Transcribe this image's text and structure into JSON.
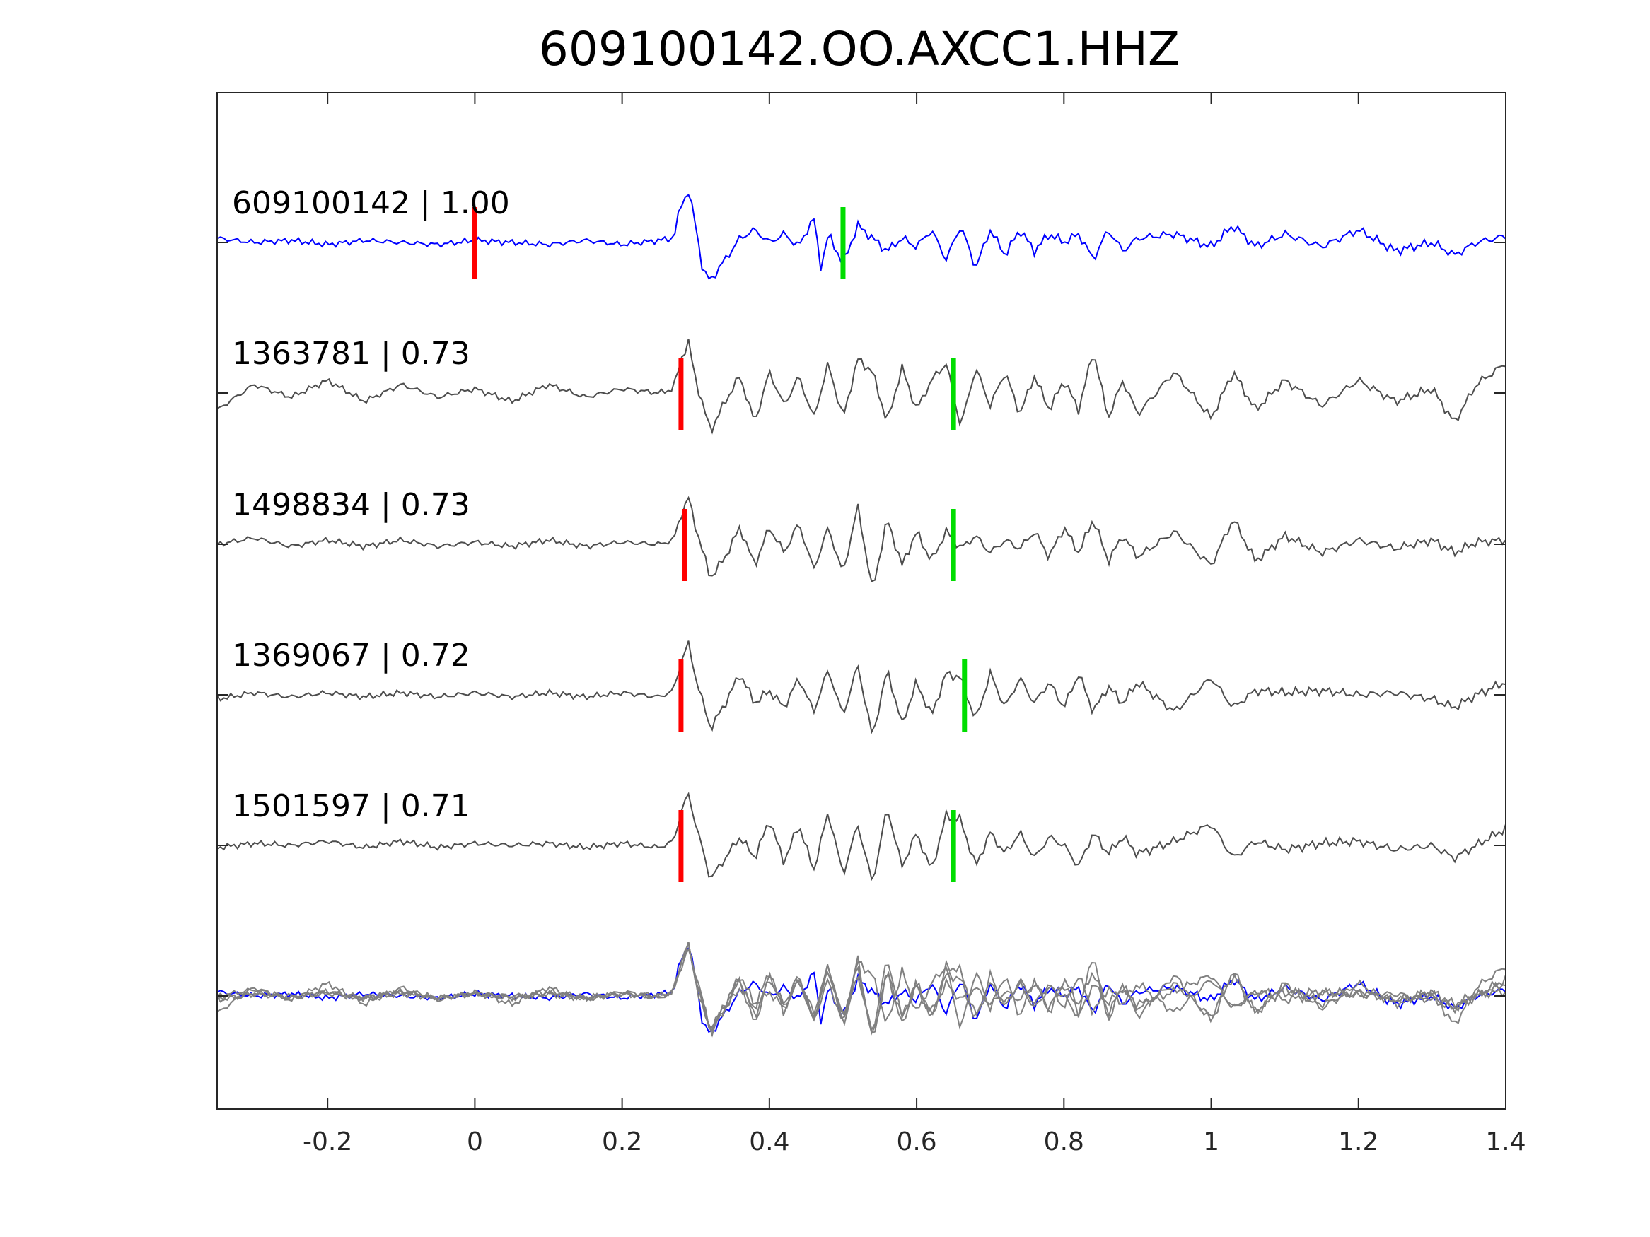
{
  "chart_data": {
    "type": "line",
    "title": "609100142.OO.AXCC1.HHZ",
    "xlabel": "",
    "ylabel": "",
    "xlim": [
      -0.35,
      1.4
    ],
    "xticks": [
      -0.2,
      0,
      0.2,
      0.4,
      0.6,
      0.8,
      1,
      1.2,
      1.4
    ],
    "xtick_labels": [
      "-0.2",
      "0",
      "0.2",
      "0.4",
      "0.6",
      "0.8",
      "1",
      "1.2",
      "1.4"
    ],
    "grid": false,
    "colors": {
      "reference": "#0000ff",
      "match": "#4d4d4d",
      "overlay": "#808080",
      "p_pick": "#ff0000",
      "s_pick": "#00dd00",
      "axes": "#262626"
    },
    "series": [
      {
        "name": "609100142",
        "label": "609100142 | 1.00",
        "cc": 1.0,
        "reference": true,
        "p_pick": 0.0,
        "s_pick": 0.5,
        "x": [
          -0.35,
          -0.3,
          -0.25,
          -0.2,
          -0.15,
          -0.1,
          -0.05,
          0.0,
          0.05,
          0.1,
          0.15,
          0.2,
          0.25,
          0.27,
          0.28,
          0.29,
          0.3,
          0.31,
          0.32,
          0.34,
          0.36,
          0.38,
          0.4,
          0.42,
          0.44,
          0.46,
          0.47,
          0.48,
          0.5,
          0.52,
          0.54,
          0.56,
          0.58,
          0.6,
          0.62,
          0.64,
          0.66,
          0.68,
          0.7,
          0.72,
          0.74,
          0.76,
          0.78,
          0.8,
          0.82,
          0.84,
          0.86,
          0.88,
          0.9,
          0.95,
          1.0,
          1.03,
          1.06,
          1.1,
          1.15,
          1.2,
          1.25,
          1.3,
          1.33,
          1.36,
          1.4
        ],
        "y": [
          0.1,
          0.0,
          0.05,
          -0.05,
          0.05,
          0.0,
          -0.05,
          0.05,
          0.0,
          -0.05,
          0.05,
          -0.05,
          0.05,
          0.1,
          0.9,
          1.2,
          0.4,
          -0.7,
          -0.9,
          -0.4,
          0.1,
          0.3,
          0.0,
          0.2,
          -0.1,
          0.6,
          -0.6,
          0.2,
          -0.5,
          0.4,
          0.1,
          -0.2,
          0.1,
          -0.1,
          0.3,
          -0.4,
          0.4,
          -0.6,
          0.3,
          -0.3,
          0.3,
          -0.2,
          0.2,
          0.0,
          0.2,
          -0.4,
          0.3,
          -0.2,
          0.1,
          0.2,
          -0.1,
          0.4,
          -0.1,
          0.2,
          -0.1,
          0.3,
          -0.2,
          0.0,
          -0.3,
          0.0,
          0.15
        ]
      },
      {
        "name": "1363781",
        "label": "1363781 | 0.73",
        "cc": 0.73,
        "p_pick": 0.28,
        "s_pick": 0.65,
        "x": [
          -0.35,
          -0.3,
          -0.25,
          -0.2,
          -0.15,
          -0.1,
          -0.05,
          0.0,
          0.05,
          0.1,
          0.15,
          0.2,
          0.25,
          0.27,
          0.28,
          0.29,
          0.3,
          0.32,
          0.34,
          0.36,
          0.38,
          0.4,
          0.42,
          0.44,
          0.46,
          0.48,
          0.5,
          0.52,
          0.54,
          0.56,
          0.58,
          0.6,
          0.62,
          0.64,
          0.66,
          0.68,
          0.7,
          0.72,
          0.74,
          0.76,
          0.78,
          0.8,
          0.82,
          0.84,
          0.86,
          0.88,
          0.9,
          0.95,
          1.0,
          1.03,
          1.06,
          1.1,
          1.15,
          1.2,
          1.25,
          1.3,
          1.33,
          1.36,
          1.4
        ],
        "y": [
          -0.4,
          0.2,
          -0.1,
          0.3,
          -0.2,
          0.2,
          -0.1,
          0.1,
          -0.2,
          0.2,
          -0.1,
          0.1,
          0.0,
          0.1,
          0.8,
          1.2,
          0.3,
          -0.9,
          -0.2,
          0.4,
          -0.7,
          0.5,
          -0.3,
          0.4,
          -0.6,
          0.7,
          -0.6,
          0.8,
          0.5,
          -0.7,
          0.6,
          -0.4,
          0.3,
          0.7,
          -0.8,
          0.6,
          -0.3,
          0.5,
          -0.5,
          0.4,
          -0.4,
          0.3,
          -0.4,
          1.0,
          -0.6,
          0.3,
          -0.5,
          0.5,
          -0.6,
          0.5,
          -0.4,
          0.3,
          -0.3,
          0.3,
          -0.2,
          0.1,
          -0.7,
          0.2,
          0.7
        ]
      },
      {
        "name": "1498834",
        "label": "1498834 | 0.73",
        "cc": 0.73,
        "p_pick": 0.285,
        "s_pick": 0.65,
        "x": [
          -0.35,
          -0.3,
          -0.25,
          -0.2,
          -0.15,
          -0.1,
          -0.05,
          0.0,
          0.05,
          0.1,
          0.15,
          0.2,
          0.25,
          0.27,
          0.28,
          0.29,
          0.3,
          0.32,
          0.34,
          0.36,
          0.38,
          0.4,
          0.42,
          0.44,
          0.46,
          0.48,
          0.5,
          0.52,
          0.54,
          0.56,
          0.58,
          0.6,
          0.62,
          0.64,
          0.66,
          0.68,
          0.7,
          0.72,
          0.74,
          0.76,
          0.78,
          0.8,
          0.82,
          0.84,
          0.86,
          0.88,
          0.9,
          0.95,
          1.0,
          1.03,
          1.06,
          1.1,
          1.15,
          1.2,
          1.25,
          1.3,
          1.33,
          1.36,
          1.4
        ],
        "y": [
          0.0,
          0.15,
          -0.05,
          0.1,
          -0.05,
          0.1,
          -0.05,
          0.05,
          -0.05,
          0.1,
          -0.05,
          0.05,
          0.0,
          0.1,
          0.7,
          1.1,
          0.4,
          -0.8,
          -0.3,
          0.4,
          -0.5,
          0.4,
          -0.2,
          0.5,
          -0.6,
          0.4,
          -0.7,
          0.9,
          -1.1,
          0.6,
          -0.5,
          0.3,
          -0.4,
          0.3,
          -0.1,
          0.2,
          -0.2,
          0.1,
          -0.1,
          0.3,
          -0.3,
          0.4,
          -0.2,
          0.6,
          -0.4,
          0.2,
          -0.3,
          0.3,
          -0.5,
          0.6,
          -0.4,
          0.2,
          -0.2,
          0.1,
          -0.1,
          0.1,
          -0.2,
          0.05,
          0.1
        ]
      },
      {
        "name": "1369067",
        "label": "1369067 | 0.72",
        "cc": 0.72,
        "p_pick": 0.28,
        "s_pick": 0.665,
        "x": [
          -0.35,
          -0.3,
          -0.25,
          -0.2,
          -0.15,
          -0.1,
          -0.05,
          0.0,
          0.05,
          0.1,
          0.15,
          0.2,
          0.25,
          0.27,
          0.28,
          0.29,
          0.3,
          0.32,
          0.34,
          0.36,
          0.38,
          0.4,
          0.42,
          0.44,
          0.46,
          0.48,
          0.5,
          0.52,
          0.54,
          0.56,
          0.58,
          0.6,
          0.62,
          0.64,
          0.66,
          0.68,
          0.7,
          0.72,
          0.74,
          0.76,
          0.78,
          0.8,
          0.82,
          0.84,
          0.86,
          0.88,
          0.9,
          0.95,
          1.0,
          1.03,
          1.06,
          1.1,
          1.15,
          1.2,
          1.25,
          1.3,
          1.33,
          1.36,
          1.4
        ],
        "y": [
          -0.1,
          0.05,
          -0.05,
          0.05,
          -0.05,
          0.05,
          -0.05,
          0.05,
          -0.05,
          0.05,
          -0.05,
          0.05,
          -0.05,
          0.1,
          0.8,
          1.2,
          0.4,
          -0.8,
          -0.2,
          0.5,
          -0.2,
          0.1,
          -0.3,
          0.4,
          -0.4,
          0.6,
          -0.5,
          0.7,
          -1.0,
          0.6,
          -0.7,
          0.3,
          -0.5,
          0.5,
          0.4,
          -0.6,
          0.5,
          -0.3,
          0.4,
          -0.2,
          0.3,
          -0.3,
          0.5,
          -0.4,
          0.2,
          -0.2,
          0.3,
          -0.4,
          0.4,
          -0.3,
          0.1,
          0.05,
          0.1,
          0.0,
          0.05,
          -0.1,
          -0.3,
          0.0,
          0.3
        ]
      },
      {
        "name": "1501597",
        "label": "1501597 | 0.71",
        "cc": 0.71,
        "p_pick": 0.28,
        "s_pick": 0.65,
        "x": [
          -0.35,
          -0.3,
          -0.25,
          -0.2,
          -0.15,
          -0.1,
          -0.05,
          0.0,
          0.05,
          0.1,
          0.15,
          0.2,
          0.25,
          0.27,
          0.28,
          0.29,
          0.3,
          0.32,
          0.34,
          0.36,
          0.38,
          0.4,
          0.42,
          0.44,
          0.46,
          0.48,
          0.5,
          0.52,
          0.54,
          0.56,
          0.58,
          0.6,
          0.62,
          0.64,
          0.66,
          0.68,
          0.7,
          0.72,
          0.74,
          0.76,
          0.78,
          0.8,
          0.82,
          0.84,
          0.86,
          0.88,
          0.9,
          0.95,
          1.0,
          1.03,
          1.06,
          1.1,
          1.15,
          1.2,
          1.25,
          1.3,
          1.33,
          1.36,
          1.4
        ],
        "y": [
          -0.05,
          0.05,
          0.0,
          0.1,
          -0.05,
          0.1,
          -0.05,
          0.05,
          0.0,
          0.05,
          -0.05,
          0.05,
          -0.05,
          0.1,
          0.8,
          1.2,
          0.5,
          -0.8,
          -0.3,
          0.2,
          -0.3,
          0.6,
          -0.4,
          0.5,
          -0.6,
          0.8,
          -0.7,
          0.5,
          -0.9,
          0.9,
          -0.5,
          0.3,
          -0.6,
          0.7,
          0.6,
          -0.5,
          0.3,
          -0.2,
          0.3,
          -0.3,
          0.2,
          0.0,
          -0.5,
          0.3,
          -0.2,
          0.2,
          -0.2,
          0.1,
          0.5,
          -0.3,
          0.1,
          -0.1,
          0.05,
          0.1,
          -0.1,
          0.0,
          -0.3,
          0.0,
          0.4
        ]
      }
    ],
    "overlay": {
      "description_visible": false,
      "includes": [
        "609100142",
        "1363781",
        "1498834",
        "1369067",
        "1501597"
      ]
    }
  }
}
